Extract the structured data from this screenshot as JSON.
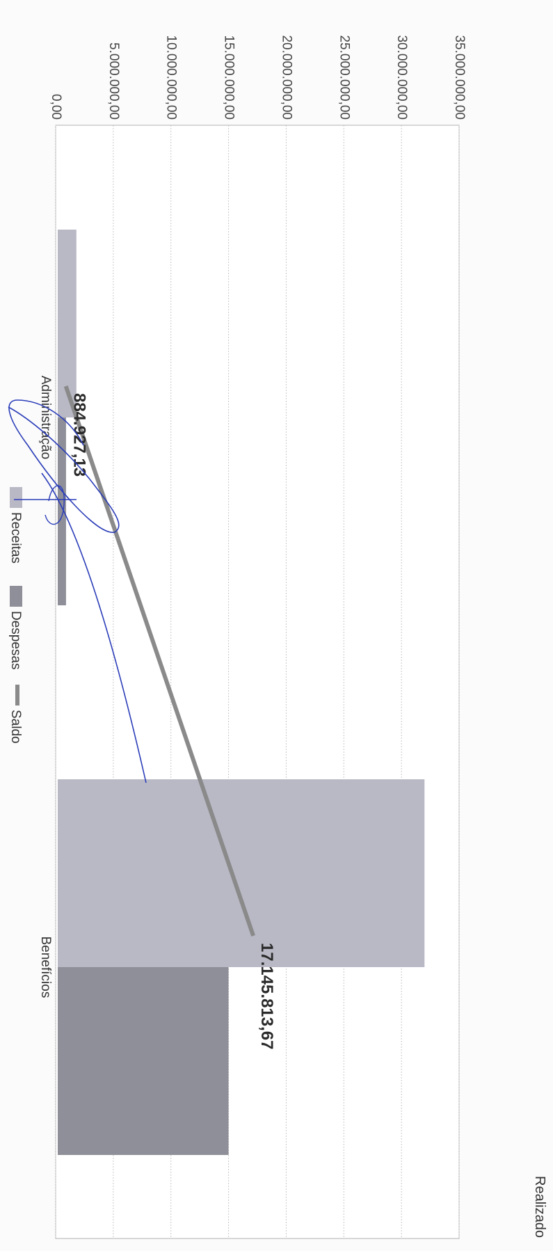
{
  "chart_data": {
    "type": "bar",
    "orientation": "rotated-90-clockwise",
    "categories": [
      "Administração",
      "Benefícios"
    ],
    "series": [
      {
        "name": "Receitas",
        "values": [
          1800000,
          32000000
        ],
        "color": "#b9b9c6"
      },
      {
        "name": "Despesas",
        "values": [
          900000,
          15000000
        ],
        "color": "#8f8f99"
      },
      {
        "name": "Saldo",
        "type": "line",
        "values": [
          884927.13,
          17145813.67
        ],
        "color": "#8a8a8a"
      }
    ],
    "data_labels": [
      "884.927,13",
      "17.145.813,67"
    ],
    "y_ticks": [
      "0,00",
      "5.000.000,00",
      "10.000.000,00",
      "15.000.000,00",
      "20.000.000,00",
      "25.000.000,00",
      "30.000.000,00",
      "35.000.000,00"
    ],
    "ylim": [
      0,
      35000000
    ],
    "grid": true,
    "legend_position": "bottom",
    "partial_title": "Realizado",
    "colors": {
      "grid": "#c8c8c8",
      "frame": "#b0b0b0",
      "signature": "#2a3cb8"
    }
  }
}
